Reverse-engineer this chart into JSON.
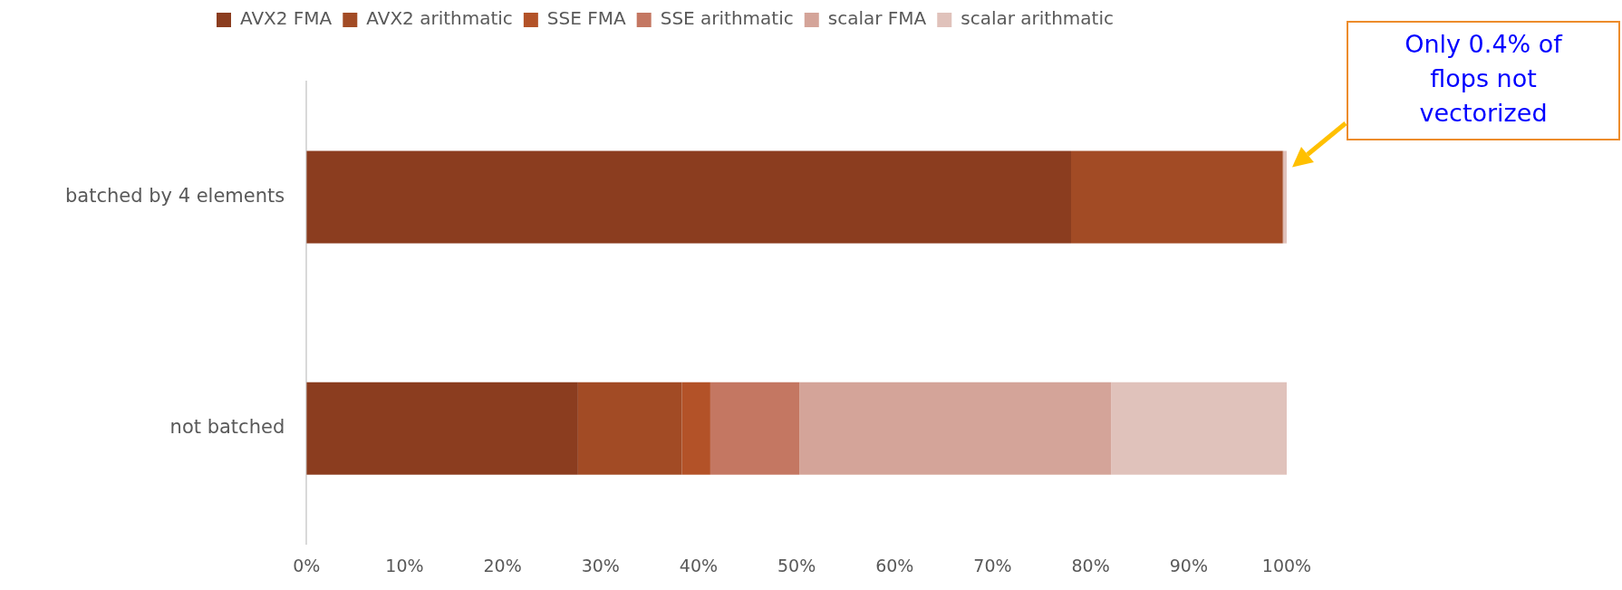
{
  "chart_data": {
    "type": "bar",
    "orientation": "horizontal",
    "stacked": true,
    "categories": [
      "batched by 4 elements",
      "not batched"
    ],
    "series": [
      {
        "name": "AVX2 FMA",
        "color": "#8b3d1f",
        "values": [
          78.0,
          27.7
        ]
      },
      {
        "name": "AVX2 arithmatic",
        "color": "#a24b25",
        "values": [
          21.6,
          10.6
        ]
      },
      {
        "name": "SSE FMA",
        "color": "#b35228",
        "values": [
          0,
          2.9
        ]
      },
      {
        "name": "SSE arithmatic",
        "color": "#c47762",
        "values": [
          0,
          9.1
        ]
      },
      {
        "name": "scalar FMA",
        "color": "#d4a499",
        "values": [
          0.1,
          31.8
        ]
      },
      {
        "name": "scalar arithmatic",
        "color": "#e0c2bb",
        "values": [
          0.3,
          17.9
        ]
      }
    ],
    "xlim": [
      0,
      100
    ],
    "xticks": [
      {
        "value": 0,
        "label": "0%"
      },
      {
        "value": 10,
        "label": "10%"
      },
      {
        "value": 20,
        "label": "20%"
      },
      {
        "value": 30,
        "label": "30%"
      },
      {
        "value": 40,
        "label": "40%"
      },
      {
        "value": 50,
        "label": "50%"
      },
      {
        "value": 60,
        "label": "60%"
      },
      {
        "value": 70,
        "label": "70%"
      },
      {
        "value": 80,
        "label": "80%"
      },
      {
        "value": 90,
        "label": "90%"
      },
      {
        "value": 100,
        "label": "100%"
      }
    ],
    "grid": false,
    "legend": "top",
    "annotations": [
      "Only 0.4% of flops not vectorized"
    ]
  }
}
